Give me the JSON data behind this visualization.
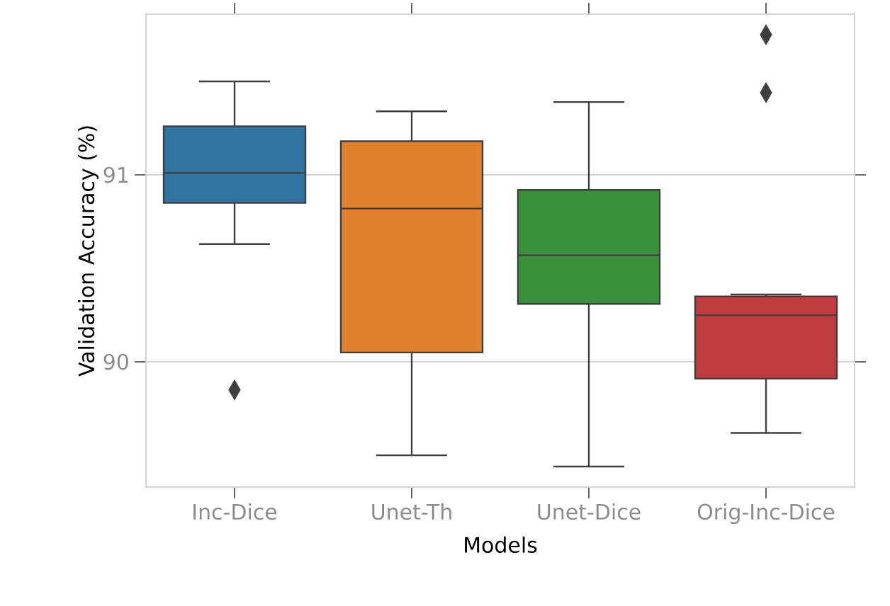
{
  "chart_data": {
    "type": "box",
    "xlabel": "Models",
    "ylabel": "Validation Accuracy (%)",
    "categories": [
      "Inc-Dice",
      "Unet-Th",
      "Unet-Dice",
      "Orig-Inc-Dice"
    ],
    "boxes": [
      {
        "low": 90.63,
        "q1": 90.85,
        "median": 91.01,
        "q3": 91.26,
        "high": 91.5,
        "outliers": [
          89.85
        ]
      },
      {
        "low": 89.5,
        "q1": 90.05,
        "median": 90.82,
        "q3": 91.18,
        "high": 91.34
      },
      {
        "low": 89.44,
        "q1": 90.31,
        "median": 90.57,
        "q3": 90.92,
        "high": 91.39
      },
      {
        "low": 89.62,
        "q1": 89.91,
        "median": 90.25,
        "q3": 90.35,
        "high": 90.36,
        "outliers": [
          91.75,
          91.44
        ]
      }
    ],
    "colors": [
      "#3274a1",
      "#e1812c",
      "#3a923a",
      "#c03d3e"
    ],
    "ylim": [
      89.33,
      91.86
    ],
    "yticks": [
      90,
      91
    ],
    "grid": "y",
    "marker": "diamond"
  }
}
